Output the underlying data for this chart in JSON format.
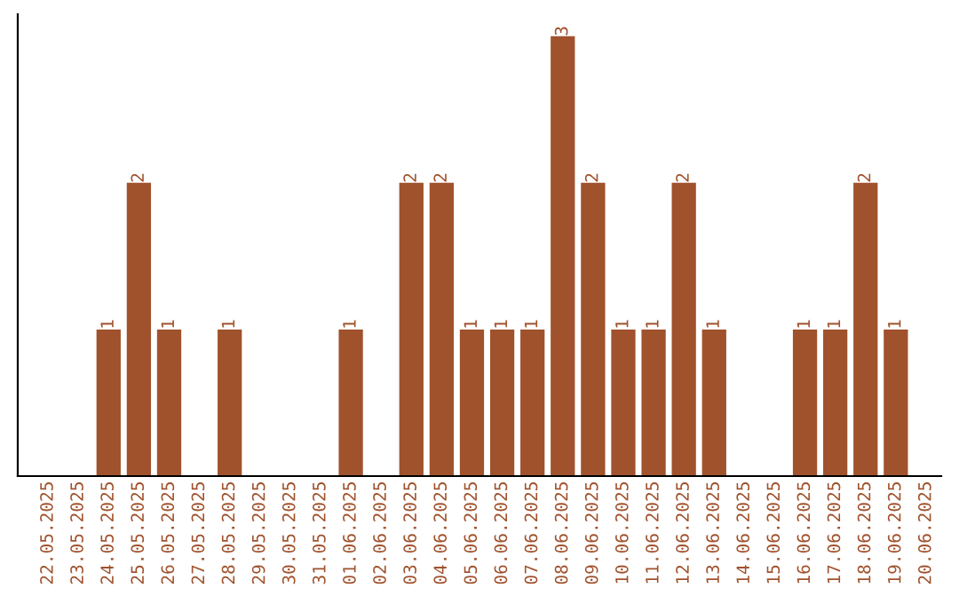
{
  "chart_data": {
    "type": "bar",
    "categories": [
      "22.05.2025",
      "23.05.2025",
      "24.05.2025",
      "25.05.2025",
      "26.05.2025",
      "27.05.2025",
      "28.05.2025",
      "29.05.2025",
      "30.05.2025",
      "31.05.2025",
      "01.06.2025",
      "02.06.2025",
      "03.06.2025",
      "04.06.2025",
      "05.06.2025",
      "06.06.2025",
      "07.06.2025",
      "08.06.2025",
      "09.06.2025",
      "10.06.2025",
      "11.06.2025",
      "12.06.2025",
      "13.06.2025",
      "14.06.2025",
      "15.06.2025",
      "16.06.2025",
      "17.06.2025",
      "18.06.2025",
      "19.06.2025",
      "20.06.2025"
    ],
    "values": [
      0,
      0,
      1,
      2,
      1,
      0,
      1,
      0,
      0,
      0,
      1,
      0,
      2,
      2,
      1,
      1,
      1,
      3,
      2,
      1,
      1,
      2,
      1,
      0,
      0,
      1,
      1,
      2,
      1,
      0
    ],
    "value_labels": [
      null,
      null,
      "1",
      "2",
      "1",
      null,
      "1",
      null,
      null,
      null,
      "1",
      null,
      "2",
      "2",
      "1",
      "1",
      "1",
      "3",
      "2",
      "1",
      "1",
      "2",
      "1",
      null,
      null,
      "1",
      "1",
      "2",
      "1",
      null
    ],
    "color": "#a0522d",
    "ylim": [
      0,
      3.15
    ],
    "tick_labels": "x",
    "grid": false,
    "legend": false
  }
}
